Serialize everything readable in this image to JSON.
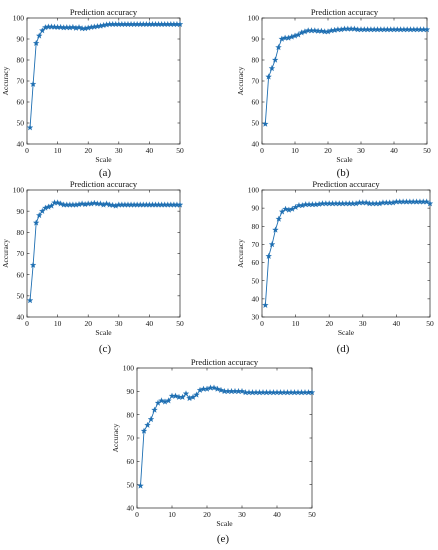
{
  "chart_data": [
    {
      "type": "line",
      "panel_label": "(a)",
      "title": "Prediction accuracy",
      "xlabel": "Scale",
      "ylabel": "Accuracy",
      "xlim": [
        0,
        50
      ],
      "ylim": [
        40,
        100
      ],
      "xticks": [
        0,
        10,
        20,
        30,
        40,
        50
      ],
      "yticks": [
        40,
        50,
        60,
        70,
        80,
        90,
        100
      ],
      "marker": "star",
      "color": "#1f6fb2",
      "grid": false,
      "x": [
        1,
        2,
        3,
        4,
        5,
        6,
        7,
        8,
        9,
        10,
        11,
        12,
        13,
        14,
        15,
        16,
        17,
        18,
        19,
        20,
        21,
        22,
        23,
        24,
        25,
        26,
        27,
        28,
        29,
        30,
        31,
        32,
        33,
        34,
        35,
        36,
        37,
        38,
        39,
        40,
        41,
        42,
        43,
        44,
        45,
        46,
        47,
        48,
        49,
        50
      ],
      "y": [
        47.8,
        68.5,
        88,
        91.5,
        94,
        95.5,
        95.8,
        95.8,
        95.7,
        95.6,
        95.6,
        95.4,
        95.5,
        95.4,
        95.6,
        95.2,
        95.5,
        95,
        95,
        95.3,
        95.6,
        95.8,
        96,
        96.2,
        96.5,
        96.8,
        97,
        97,
        97,
        97,
        97,
        97,
        97,
        97,
        97,
        97,
        97,
        97,
        97,
        97,
        97,
        97,
        97,
        97,
        97,
        97,
        97,
        97,
        97,
        97
      ]
    },
    {
      "type": "line",
      "panel_label": "(b)",
      "title": "Prediction accuracy",
      "xlabel": "Scale",
      "ylabel": "Accuracy",
      "xlim": [
        0,
        50
      ],
      "ylim": [
        40,
        100
      ],
      "xticks": [
        0,
        10,
        20,
        30,
        40,
        50
      ],
      "yticks": [
        40,
        50,
        60,
        70,
        80,
        90,
        100
      ],
      "marker": "star",
      "color": "#1f6fb2",
      "grid": false,
      "x": [
        1,
        2,
        3,
        4,
        5,
        6,
        7,
        8,
        9,
        10,
        11,
        12,
        13,
        14,
        15,
        16,
        17,
        18,
        19,
        20,
        21,
        22,
        23,
        24,
        25,
        26,
        27,
        28,
        29,
        30,
        31,
        32,
        33,
        34,
        35,
        36,
        37,
        38,
        39,
        40,
        41,
        42,
        43,
        44,
        45,
        46,
        47,
        48,
        49,
        50
      ],
      "y": [
        49.5,
        72,
        76,
        80,
        86,
        90,
        90.5,
        90.5,
        91,
        91.5,
        92,
        93,
        93.5,
        94,
        94,
        94,
        93.8,
        93.8,
        93.5,
        93.5,
        94,
        94.2,
        94.5,
        94.5,
        94.8,
        94.8,
        94.8,
        94.8,
        94.5,
        94.5,
        94.5,
        94.5,
        94.5,
        94.5,
        94.5,
        94.5,
        94.5,
        94.5,
        94.5,
        94.5,
        94.5,
        94.5,
        94.5,
        94.5,
        94.5,
        94.5,
        94.5,
        94.5,
        94.5,
        94.5
      ]
    },
    {
      "type": "line",
      "panel_label": "(c)",
      "title": "Prediction accuracy",
      "xlabel": "Scale",
      "ylabel": "Accuracy",
      "xlim": [
        0,
        50
      ],
      "ylim": [
        40,
        100
      ],
      "xticks": [
        0,
        10,
        20,
        30,
        40,
        50
      ],
      "yticks": [
        40,
        50,
        60,
        70,
        80,
        90,
        100
      ],
      "marker": "star",
      "color": "#1f6fb2",
      "grid": false,
      "x": [
        1,
        2,
        3,
        4,
        5,
        6,
        7,
        8,
        9,
        10,
        11,
        12,
        13,
        14,
        15,
        16,
        17,
        18,
        19,
        20,
        21,
        22,
        23,
        24,
        25,
        26,
        27,
        28,
        29,
        30,
        31,
        32,
        33,
        34,
        35,
        36,
        37,
        38,
        39,
        40,
        41,
        42,
        43,
        44,
        45,
        46,
        47,
        48,
        49,
        50
      ],
      "y": [
        47.8,
        64.5,
        84.5,
        88,
        90,
        91.5,
        92,
        92.5,
        94,
        94,
        93.5,
        93,
        93,
        93,
        93,
        93,
        93.2,
        93.5,
        93.2,
        93.5,
        93.5,
        93.8,
        93.5,
        93.5,
        93,
        93.5,
        93,
        92.8,
        92.5,
        93,
        93,
        93,
        93,
        93,
        93,
        93,
        93,
        93,
        93,
        93,
        93,
        93,
        93,
        93,
        93,
        93,
        93,
        93,
        93,
        93
      ]
    },
    {
      "type": "line",
      "panel_label": "(d)",
      "title": "Prediction accuracy",
      "xlabel": "Scale",
      "ylabel": "Accuracy",
      "xlim": [
        0,
        50
      ],
      "ylim": [
        30,
        100
      ],
      "xticks": [
        0,
        10,
        20,
        30,
        40,
        50
      ],
      "yticks": [
        30,
        40,
        50,
        60,
        70,
        80,
        90,
        100
      ],
      "marker": "star",
      "color": "#1f6fb2",
      "grid": false,
      "x": [
        1,
        2,
        3,
        4,
        5,
        6,
        7,
        8,
        9,
        10,
        11,
        12,
        13,
        14,
        15,
        16,
        17,
        18,
        19,
        20,
        21,
        22,
        23,
        24,
        25,
        26,
        27,
        28,
        29,
        30,
        31,
        32,
        33,
        34,
        35,
        36,
        37,
        38,
        39,
        40,
        41,
        42,
        43,
        44,
        45,
        46,
        47,
        48,
        49,
        50
      ],
      "y": [
        36.5,
        63.5,
        70,
        78,
        84,
        88,
        89.5,
        89,
        89.5,
        90.5,
        91.5,
        91.5,
        92,
        92,
        92,
        92,
        92.2,
        92.5,
        92.5,
        92.5,
        92.5,
        92.5,
        92.5,
        92.5,
        92.5,
        92.5,
        92.5,
        92.5,
        93,
        93,
        93,
        92.5,
        92.5,
        92.5,
        92.5,
        93,
        93,
        93,
        93,
        93.5,
        93.5,
        93.5,
        93.5,
        93.5,
        93.5,
        93.5,
        93.5,
        93.5,
        93.5,
        92.5
      ]
    },
    {
      "type": "line",
      "panel_label": "(e)",
      "title": "Prediction accuracy",
      "xlabel": "Scale",
      "ylabel": "Accuracy",
      "xlim": [
        0,
        50
      ],
      "ylim": [
        40,
        100
      ],
      "xticks": [
        0,
        10,
        20,
        30,
        40,
        50
      ],
      "yticks": [
        40,
        50,
        60,
        70,
        80,
        90,
        100
      ],
      "marker": "star",
      "color": "#1f6fb2",
      "grid": false,
      "x": [
        1,
        2,
        3,
        4,
        5,
        6,
        7,
        8,
        9,
        10,
        11,
        12,
        13,
        14,
        15,
        16,
        17,
        18,
        19,
        20,
        21,
        22,
        23,
        24,
        25,
        26,
        27,
        28,
        29,
        30,
        31,
        32,
        33,
        34,
        35,
        36,
        37,
        38,
        39,
        40,
        41,
        42,
        43,
        44,
        45,
        46,
        47,
        48,
        49,
        50
      ],
      "y": [
        49.5,
        73,
        75.5,
        78,
        82,
        85,
        86,
        85.5,
        86,
        88,
        88,
        87.5,
        87.5,
        89,
        87,
        87.5,
        88.5,
        90.5,
        91,
        91,
        91.5,
        91.5,
        91,
        90.5,
        90,
        90,
        90,
        90,
        90,
        90,
        89.5,
        89.5,
        89.5,
        89.5,
        89.5,
        89.5,
        89.5,
        89.5,
        89.5,
        89.5,
        89.5,
        89.5,
        89.5,
        89.5,
        89.5,
        89.5,
        89.5,
        89.5,
        89.5,
        89.5
      ]
    }
  ]
}
